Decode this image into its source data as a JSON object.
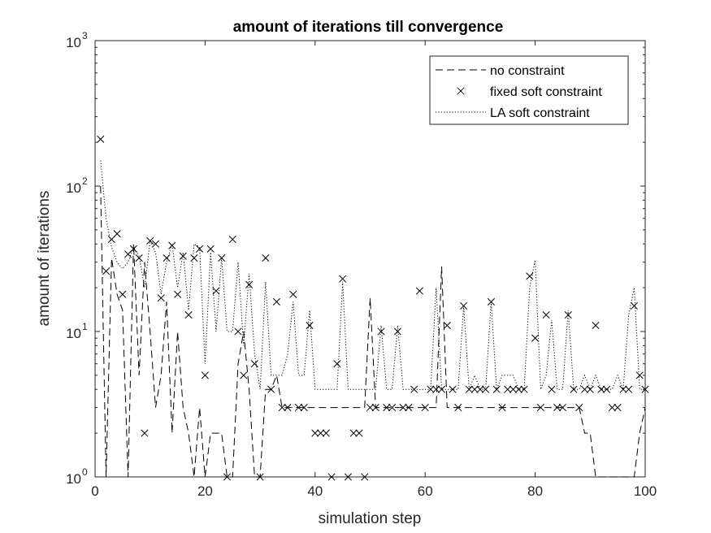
{
  "chart_data": {
    "type": "line",
    "title": "amount of iterations till convergence",
    "xlabel": "simulation step",
    "ylabel": "amount of iterations",
    "xlim": [
      0,
      100
    ],
    "ylim": [
      1,
      1000
    ],
    "yscale": "log",
    "x_ticks": [
      0,
      20,
      40,
      60,
      80,
      100
    ],
    "x_tick_labels": [
      "0",
      "20",
      "40",
      "60",
      "80",
      "100"
    ],
    "y_ticks": [
      1,
      10,
      100,
      1000
    ],
    "y_tick_bases": [
      "10",
      "10",
      "10",
      "10"
    ],
    "y_tick_exponents": [
      "0",
      "1",
      "2",
      "3"
    ],
    "grid": false,
    "legend_position": "top-right",
    "series": [
      {
        "name": "no constraint",
        "style": "dashed",
        "color": "#000000",
        "points": [
          [
            1,
            100
          ],
          [
            2,
            1
          ],
          [
            3,
            32
          ],
          [
            4,
            18
          ],
          [
            5,
            14
          ],
          [
            6,
            1
          ],
          [
            7,
            40
          ],
          [
            8,
            5
          ],
          [
            9,
            30
          ],
          [
            10,
            10
          ],
          [
            11,
            3
          ],
          [
            12,
            5
          ],
          [
            13,
            16
          ],
          [
            14,
            2
          ],
          [
            15,
            10
          ],
          [
            16,
            3
          ],
          [
            17,
            2
          ],
          [
            18,
            1
          ],
          [
            19,
            3
          ],
          [
            20,
            1
          ],
          [
            21,
            2
          ],
          [
            22,
            2
          ],
          [
            23,
            2
          ],
          [
            24,
            1
          ],
          [
            25,
            1
          ],
          [
            26,
            6
          ],
          [
            27,
            10
          ],
          [
            28,
            4
          ],
          [
            29,
            1
          ],
          [
            30,
            1
          ],
          [
            31,
            4
          ],
          [
            32,
            4
          ],
          [
            33,
            5
          ],
          [
            34,
            3
          ],
          [
            35,
            3
          ],
          [
            36,
            3
          ],
          [
            37,
            3
          ],
          [
            38,
            3
          ],
          [
            39,
            3
          ],
          [
            40,
            3
          ],
          [
            41,
            3
          ],
          [
            42,
            3
          ],
          [
            43,
            3
          ],
          [
            44,
            3
          ],
          [
            45,
            3
          ],
          [
            46,
            3
          ],
          [
            47,
            3
          ],
          [
            48,
            3
          ],
          [
            49,
            3
          ],
          [
            50,
            17
          ],
          [
            51,
            3
          ],
          [
            52,
            3
          ],
          [
            53,
            3
          ],
          [
            54,
            3
          ],
          [
            55,
            3
          ],
          [
            56,
            3
          ],
          [
            57,
            3
          ],
          [
            58,
            3
          ],
          [
            59,
            3
          ],
          [
            60,
            3
          ],
          [
            61,
            3
          ],
          [
            62,
            3
          ],
          [
            63,
            28
          ],
          [
            64,
            3
          ],
          [
            65,
            3
          ],
          [
            66,
            3
          ],
          [
            67,
            3
          ],
          [
            68,
            3
          ],
          [
            69,
            3
          ],
          [
            70,
            3
          ],
          [
            71,
            3
          ],
          [
            72,
            3
          ],
          [
            73,
            3
          ],
          [
            74,
            3
          ],
          [
            75,
            3
          ],
          [
            76,
            3
          ],
          [
            77,
            3
          ],
          [
            78,
            3
          ],
          [
            79,
            3
          ],
          [
            80,
            3
          ],
          [
            81,
            3
          ],
          [
            82,
            3
          ],
          [
            83,
            3
          ],
          [
            84,
            3
          ],
          [
            85,
            3
          ],
          [
            86,
            3
          ],
          [
            87,
            3
          ],
          [
            88,
            3
          ],
          [
            89,
            2
          ],
          [
            90,
            2
          ],
          [
            91,
            1
          ],
          [
            92,
            1
          ],
          [
            93,
            1
          ],
          [
            94,
            1
          ],
          [
            95,
            1
          ],
          [
            96,
            1
          ],
          [
            97,
            1
          ],
          [
            98,
            1
          ],
          [
            99,
            2
          ],
          [
            100,
            3
          ]
        ]
      },
      {
        "name": "fixed soft constraint",
        "style": "marker-x",
        "color": "#000000",
        "points": [
          [
            1,
            210
          ],
          [
            2,
            26
          ],
          [
            3,
            43
          ],
          [
            4,
            47
          ],
          [
            5,
            18
          ],
          [
            6,
            34
          ],
          [
            7,
            37
          ],
          [
            8,
            32
          ],
          [
            9,
            2
          ],
          [
            10,
            42
          ],
          [
            11,
            40
          ],
          [
            12,
            17
          ],
          [
            13,
            32
          ],
          [
            14,
            39
          ],
          [
            15,
            18
          ],
          [
            16,
            33
          ],
          [
            17,
            13
          ],
          [
            18,
            32
          ],
          [
            19,
            37
          ],
          [
            20,
            5
          ],
          [
            21,
            37
          ],
          [
            22,
            19
          ],
          [
            23,
            32
          ],
          [
            24,
            1
          ],
          [
            25,
            43
          ],
          [
            26,
            10
          ],
          [
            27,
            5
          ],
          [
            28,
            21
          ],
          [
            29,
            6
          ],
          [
            30,
            1
          ],
          [
            31,
            32
          ],
          [
            32,
            4
          ],
          [
            33,
            16
          ],
          [
            34,
            3
          ],
          [
            35,
            3
          ],
          [
            36,
            18
          ],
          [
            37,
            3
          ],
          [
            38,
            3
          ],
          [
            39,
            11
          ],
          [
            40,
            2
          ],
          [
            41,
            2
          ],
          [
            42,
            2
          ],
          [
            43,
            1
          ],
          [
            44,
            6
          ],
          [
            45,
            23
          ],
          [
            46,
            1
          ],
          [
            47,
            2
          ],
          [
            48,
            2
          ],
          [
            49,
            1
          ],
          [
            50,
            3
          ],
          [
            51,
            3
          ],
          [
            52,
            10
          ],
          [
            53,
            3
          ],
          [
            54,
            3
          ],
          [
            55,
            10
          ],
          [
            56,
            3
          ],
          [
            57,
            3
          ],
          [
            58,
            4
          ],
          [
            59,
            19
          ],
          [
            60,
            3
          ],
          [
            61,
            4
          ],
          [
            62,
            4
          ],
          [
            63,
            4
          ],
          [
            64,
            11
          ],
          [
            65,
            4
          ],
          [
            66,
            3
          ],
          [
            67,
            15
          ],
          [
            68,
            4
          ],
          [
            69,
            4
          ],
          [
            70,
            4
          ],
          [
            71,
            4
          ],
          [
            72,
            16
          ],
          [
            73,
            4
          ],
          [
            74,
            3
          ],
          [
            75,
            4
          ],
          [
            76,
            4
          ],
          [
            77,
            4
          ],
          [
            78,
            4
          ],
          [
            79,
            24
          ],
          [
            80,
            9
          ],
          [
            81,
            3
          ],
          [
            82,
            13
          ],
          [
            83,
            4
          ],
          [
            84,
            3
          ],
          [
            85,
            3
          ],
          [
            86,
            13
          ],
          [
            87,
            4
          ],
          [
            88,
            3
          ],
          [
            89,
            4
          ],
          [
            90,
            4
          ],
          [
            91,
            11
          ],
          [
            92,
            4
          ],
          [
            93,
            4
          ],
          [
            94,
            3
          ],
          [
            95,
            3
          ],
          [
            96,
            4
          ],
          [
            97,
            4
          ],
          [
            98,
            15
          ],
          [
            99,
            5
          ],
          [
            100,
            4
          ]
        ]
      },
      {
        "name": "LA soft constraint",
        "style": "dotted",
        "color": "#000000",
        "points": [
          [
            1,
            150
          ],
          [
            2,
            60
          ],
          [
            3,
            38
          ],
          [
            4,
            30
          ],
          [
            5,
            27
          ],
          [
            6,
            30
          ],
          [
            7,
            38
          ],
          [
            8,
            33
          ],
          [
            9,
            20
          ],
          [
            10,
            42
          ],
          [
            11,
            35
          ],
          [
            12,
            18
          ],
          [
            13,
            30
          ],
          [
            14,
            40
          ],
          [
            15,
            20
          ],
          [
            16,
            35
          ],
          [
            17,
            14
          ],
          [
            18,
            40
          ],
          [
            19,
            38
          ],
          [
            20,
            6
          ],
          [
            21,
            35
          ],
          [
            22,
            10
          ],
          [
            23,
            32
          ],
          [
            24,
            10
          ],
          [
            25,
            10
          ],
          [
            26,
            30
          ],
          [
            27,
            8
          ],
          [
            28,
            25
          ],
          [
            29,
            7
          ],
          [
            30,
            4
          ],
          [
            31,
            22
          ],
          [
            32,
            5
          ],
          [
            33,
            5
          ],
          [
            34,
            5
          ],
          [
            35,
            7
          ],
          [
            36,
            16
          ],
          [
            37,
            5
          ],
          [
            38,
            5
          ],
          [
            39,
            14
          ],
          [
            40,
            4
          ],
          [
            41,
            4
          ],
          [
            42,
            4
          ],
          [
            43,
            4
          ],
          [
            44,
            4
          ],
          [
            45,
            22
          ],
          [
            46,
            4
          ],
          [
            47,
            4
          ],
          [
            48,
            4
          ],
          [
            49,
            4
          ],
          [
            50,
            4
          ],
          [
            51,
            4
          ],
          [
            52,
            11
          ],
          [
            53,
            4
          ],
          [
            54,
            4
          ],
          [
            55,
            11
          ],
          [
            56,
            4
          ],
          [
            57,
            4
          ],
          [
            58,
            4
          ],
          [
            59,
            4
          ],
          [
            60,
            4
          ],
          [
            61,
            4
          ],
          [
            62,
            20
          ],
          [
            63,
            4
          ],
          [
            64,
            4
          ],
          [
            65,
            4
          ],
          [
            66,
            4
          ],
          [
            67,
            15
          ],
          [
            68,
            4
          ],
          [
            69,
            5
          ],
          [
            70,
            4
          ],
          [
            71,
            4
          ],
          [
            72,
            16
          ],
          [
            73,
            4
          ],
          [
            74,
            5
          ],
          [
            75,
            5
          ],
          [
            76,
            5
          ],
          [
            77,
            4
          ],
          [
            78,
            4
          ],
          [
            79,
            20
          ],
          [
            80,
            31
          ],
          [
            81,
            4
          ],
          [
            82,
            5
          ],
          [
            83,
            12
          ],
          [
            84,
            4
          ],
          [
            85,
            4
          ],
          [
            86,
            14
          ],
          [
            87,
            4
          ],
          [
            88,
            4
          ],
          [
            89,
            5
          ],
          [
            90,
            4
          ],
          [
            91,
            5
          ],
          [
            92,
            4
          ],
          [
            93,
            4
          ],
          [
            94,
            4
          ],
          [
            95,
            5
          ],
          [
            96,
            4
          ],
          [
            97,
            13
          ],
          [
            98,
            20
          ],
          [
            99,
            4
          ],
          [
            100,
            4
          ]
        ]
      }
    ]
  }
}
